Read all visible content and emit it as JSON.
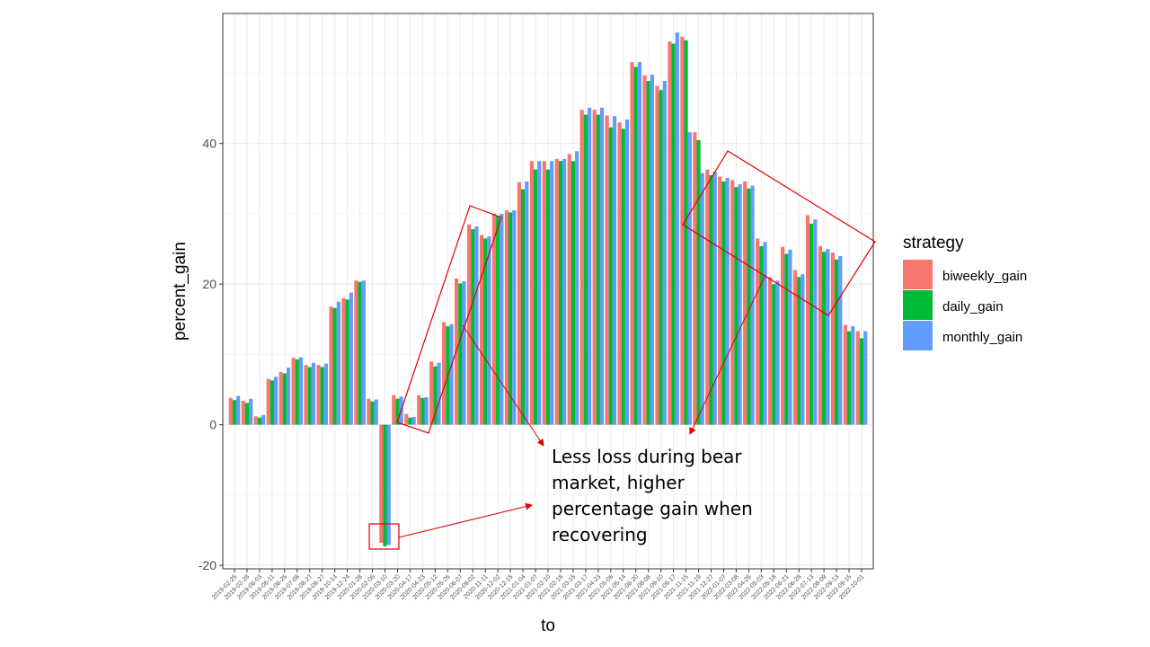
{
  "chart_data": {
    "type": "bar",
    "xlabel": "to",
    "ylabel": "percent_gain",
    "ylim": [
      -20.5,
      58.5
    ],
    "yticks": [
      -20,
      0,
      20,
      40
    ],
    "grid": true,
    "legend": {
      "title": "strategy",
      "placement": "right"
    },
    "categories": [
      "2019-02-25",
      "2019-02-28",
      "2019-06-03",
      "2019-06-11",
      "2019-06-25",
      "2019-07-08",
      "2019-08-27",
      "2019-09-27",
      "2019-10-14",
      "2019-12-24",
      "2020-01-28",
      "2020-02-06",
      "2020-03-10",
      "2020-03-20",
      "2020-04-17",
      "2020-04-23",
      "2020-05-12",
      "2020-05-26",
      "2020-06-07",
      "2020-09-02",
      "2020-11-11",
      "2020-12-02",
      "2020-12-15",
      "2021-01-04",
      "2021-01-07",
      "2021-02-10",
      "2021-02-18",
      "2021-03-15",
      "2021-03-17",
      "2021-04-23",
      "2021-05-06",
      "2021-05-14",
      "2021-06-20",
      "2021-08-08",
      "2021-09-10",
      "2021-09-17",
      "2021-11-15",
      "2021-11-19",
      "2021-12-27",
      "2022-01-07",
      "2022-03-08",
      "2022-04-26",
      "2022-05-03",
      "2022-05-18",
      "2022-06-21",
      "2022-06-28",
      "2022-07-13",
      "2022-08-09",
      "2022-09-13",
      "2022-09-15",
      "2022-10-01"
    ],
    "series": [
      {
        "name": "biweekly_gain",
        "color": "#F8766D",
        "values": [
          3.8,
          3.4,
          1.2,
          6.5,
          7.5,
          9.5,
          8.5,
          8.5,
          16.8,
          18,
          20.5,
          3.7,
          -16.8,
          4.2,
          1.5,
          4.2,
          9,
          14.6,
          20.8,
          28.5,
          27,
          30,
          30.5,
          34.5,
          37.5,
          37.5,
          37.8,
          38.5,
          44.8,
          44.8,
          44,
          43,
          51.6,
          49.7,
          48.2,
          54.5,
          55.2,
          41.6,
          36.3,
          35.3,
          34.8,
          34.6,
          26.5,
          21,
          25.3,
          22,
          29.8,
          25.4,
          24.5,
          14.2,
          13.3
        ]
      },
      {
        "name": "daily_gain",
        "color": "#00BA38",
        "values": [
          3.5,
          3.1,
          1,
          6.3,
          7.3,
          9.3,
          8.2,
          8.2,
          16.6,
          17.8,
          20.3,
          3.3,
          -17.3,
          3.7,
          1,
          3.8,
          8.3,
          14,
          20.1,
          27.8,
          26.5,
          29.7,
          30.2,
          33.5,
          36.3,
          36.3,
          37.5,
          37.5,
          44.1,
          44.1,
          42.3,
          42.1,
          50.9,
          48.9,
          47.6,
          54.2,
          54.7,
          40.5,
          35.5,
          34.6,
          33.8,
          33.6,
          25.4,
          20,
          24.3,
          21,
          28.6,
          24.6,
          23.5,
          13.3,
          12.3
        ]
      },
      {
        "name": "monthly_gain",
        "color": "#619CFF",
        "values": [
          4.1,
          3.7,
          1.4,
          6.8,
          8.1,
          9.6,
          8.8,
          8.7,
          17.5,
          18.8,
          20.5,
          3.6,
          -17.1,
          4,
          1.1,
          3.9,
          8.8,
          14.3,
          20.4,
          28.2,
          26.8,
          30,
          30.5,
          34.6,
          37.5,
          37.5,
          37.8,
          38.9,
          45.1,
          45.1,
          43.9,
          43.4,
          51.6,
          49.8,
          48.9,
          55.8,
          41.6,
          35.8,
          36,
          35.1,
          34.2,
          34,
          26,
          20.5,
          24.9,
          21.4,
          29.2,
          25,
          24,
          14,
          13.3
        ]
      }
    ]
  },
  "annotation": {
    "text": "Less loss during bear market, higher percentage gain when recovering"
  }
}
